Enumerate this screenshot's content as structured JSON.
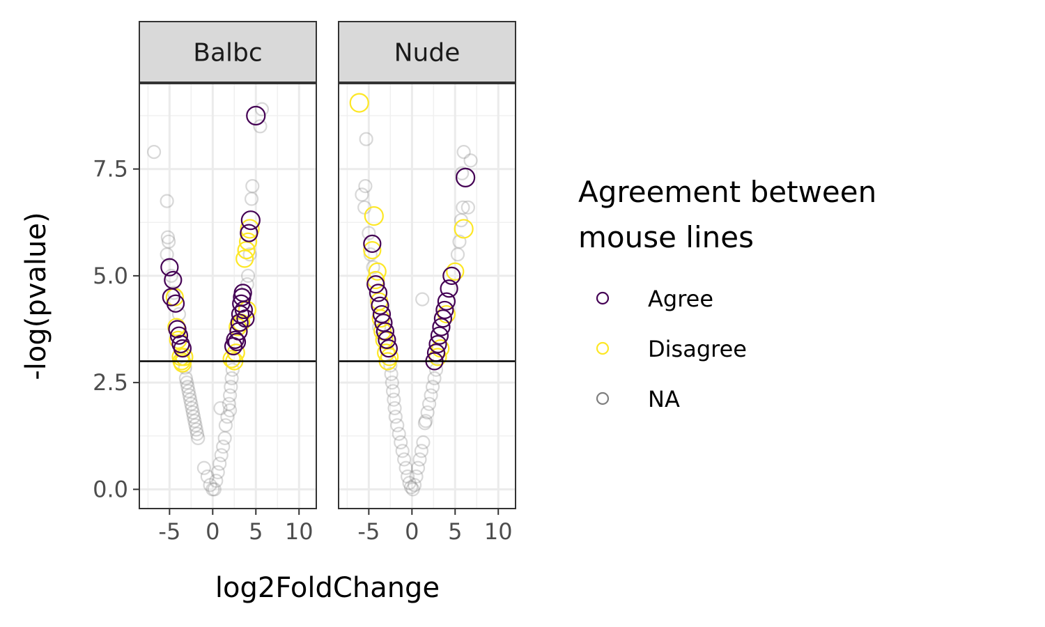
{
  "chart_data": {
    "type": "scatter",
    "xlabel": "log2FoldChange",
    "ylabel": "-log(pvalue)",
    "xlim": [
      -8.5,
      12
    ],
    "ylim": [
      -0.45,
      9.5
    ],
    "x_ticks": [
      -5,
      0,
      5,
      10
    ],
    "x_tick_labels": [
      "-5",
      "0",
      "5",
      "10"
    ],
    "y_ticks": [
      0,
      2.5,
      5,
      7.5
    ],
    "y_tick_labels": [
      "0.0",
      "2.5",
      "5.0",
      "7.5"
    ],
    "threshold_line_y": 3.0,
    "grid": true,
    "legend": {
      "title_lines": [
        "Agreement between",
        "mouse lines"
      ],
      "placement": "right",
      "entries": [
        {
          "label": "Agree",
          "color": "#440154"
        },
        {
          "label": "Disagree",
          "color": "#FDE725"
        },
        {
          "label": "NA",
          "color": "#7f7f7f"
        }
      ]
    },
    "facets": [
      {
        "label": "Balbc",
        "series": [
          {
            "name": "Agree",
            "color": "#440154",
            "points": [
              [
                -5.0,
                5.2
              ],
              [
                -4.6,
                4.9
              ],
              [
                -4.8,
                4.5
              ],
              [
                -4.3,
                4.35
              ],
              [
                -4.1,
                3.75
              ],
              [
                -3.9,
                3.6
              ],
              [
                -3.7,
                3.4
              ],
              [
                -3.5,
                3.3
              ],
              [
                2.4,
                3.35
              ],
              [
                2.6,
                3.5
              ],
              [
                2.8,
                3.45
              ],
              [
                3.0,
                3.7
              ],
              [
                3.1,
                3.9
              ],
              [
                3.2,
                4.1
              ],
              [
                3.3,
                4.35
              ],
              [
                3.4,
                4.5
              ],
              [
                3.5,
                4.6
              ],
              [
                3.6,
                4.2
              ],
              [
                3.8,
                4.0
              ],
              [
                4.2,
                6.0
              ],
              [
                4.4,
                6.3
              ],
              [
                5.0,
                8.75
              ]
            ]
          },
          {
            "name": "Disagree",
            "color": "#FDE725",
            "points": [
              [
                -4.4,
                4.5
              ],
              [
                -4.2,
                3.8
              ],
              [
                -4.0,
                3.5
              ],
              [
                -3.7,
                3.1
              ],
              [
                -3.5,
                2.95
              ],
              [
                -3.3,
                3.1
              ],
              [
                -3.6,
                3.0
              ],
              [
                2.2,
                3.05
              ],
              [
                2.5,
                3.0
              ],
              [
                2.7,
                3.2
              ],
              [
                2.9,
                3.8
              ],
              [
                3.3,
                3.9
              ],
              [
                3.7,
                5.4
              ],
              [
                3.9,
                5.6
              ],
              [
                4.1,
                5.8
              ],
              [
                4.3,
                6.1
              ],
              [
                4.0,
                4.2
              ]
            ]
          },
          {
            "name": "NA",
            "color": "#7f7f7f",
            "points": [
              [
                -6.8,
                7.9
              ],
              [
                -5.3,
                6.75
              ],
              [
                -5.2,
                5.9
              ],
              [
                -5.1,
                5.8
              ],
              [
                -5.3,
                5.5
              ],
              [
                -4.8,
                5.0
              ],
              [
                -4.5,
                4.6
              ],
              [
                -3.9,
                4.1
              ],
              [
                -3.2,
                2.85
              ],
              [
                -3.1,
                2.6
              ],
              [
                -3.0,
                2.5
              ],
              [
                -2.9,
                2.4
              ],
              [
                -2.8,
                2.3
              ],
              [
                -2.7,
                2.2
              ],
              [
                -2.6,
                2.1
              ],
              [
                -2.5,
                2.0
              ],
              [
                -2.4,
                1.9
              ],
              [
                -2.3,
                1.8
              ],
              [
                -2.2,
                1.7
              ],
              [
                -2.1,
                1.6
              ],
              [
                -2.0,
                1.5
              ],
              [
                -1.9,
                1.4
              ],
              [
                -1.8,
                1.3
              ],
              [
                -1.7,
                1.2
              ],
              [
                -1.0,
                0.5
              ],
              [
                -0.6,
                0.3
              ],
              [
                -0.3,
                0.1
              ],
              [
                0.0,
                0.0
              ],
              [
                0.2,
                0.0
              ],
              [
                0.4,
                0.2
              ],
              [
                0.6,
                0.4
              ],
              [
                0.8,
                0.6
              ],
              [
                0.9,
                1.9
              ],
              [
                1.0,
                0.8
              ],
              [
                1.2,
                1.0
              ],
              [
                1.4,
                1.2
              ],
              [
                1.5,
                1.5
              ],
              [
                1.7,
                1.7
              ],
              [
                1.9,
                2.0
              ],
              [
                2.0,
                2.2
              ],
              [
                2.1,
                2.4
              ],
              [
                2.2,
                2.6
              ],
              [
                2.3,
                2.8
              ],
              [
                2.0,
                1.85
              ],
              [
                4.0,
                4.8
              ],
              [
                4.1,
                5.0
              ],
              [
                4.3,
                5.5
              ],
              [
                4.5,
                6.8
              ],
              [
                4.6,
                7.1
              ],
              [
                5.5,
                8.5
              ],
              [
                5.7,
                8.9
              ]
            ]
          }
        ]
      },
      {
        "label": "Nude",
        "series": [
          {
            "name": "Agree",
            "color": "#440154",
            "points": [
              [
                -4.6,
                5.75
              ],
              [
                -4.2,
                4.8
              ],
              [
                -3.9,
                4.6
              ],
              [
                -3.7,
                4.3
              ],
              [
                -3.5,
                4.1
              ],
              [
                -3.3,
                3.9
              ],
              [
                -3.1,
                3.7
              ],
              [
                -2.9,
                3.5
              ],
              [
                -2.7,
                3.3
              ],
              [
                2.6,
                3.0
              ],
              [
                2.8,
                3.2
              ],
              [
                3.0,
                3.4
              ],
              [
                3.2,
                3.6
              ],
              [
                3.4,
                3.8
              ],
              [
                3.6,
                4.0
              ],
              [
                3.8,
                4.2
              ],
              [
                4.0,
                4.4
              ],
              [
                4.3,
                4.7
              ],
              [
                4.6,
                5.0
              ],
              [
                6.2,
                7.3
              ]
            ]
          },
          {
            "name": "Disagree",
            "color": "#FDE725",
            "points": [
              [
                -6.1,
                9.05
              ],
              [
                -4.6,
                5.6
              ],
              [
                -4.4,
                6.4
              ],
              [
                -4.2,
                4.9
              ],
              [
                -4.0,
                5.1
              ],
              [
                -3.8,
                4.4
              ],
              [
                -3.6,
                4.0
              ],
              [
                -3.4,
                3.7
              ],
              [
                -3.2,
                3.5
              ],
              [
                -3.0,
                3.2
              ],
              [
                -2.8,
                3.0
              ],
              [
                -2.6,
                3.1
              ],
              [
                3.0,
                3.1
              ],
              [
                3.3,
                3.3
              ],
              [
                4.0,
                4.1
              ],
              [
                5.0,
                5.1
              ],
              [
                6.0,
                6.1
              ]
            ]
          },
          {
            "name": "NA",
            "color": "#7f7f7f",
            "points": [
              [
                -5.3,
                8.2
              ],
              [
                -5.4,
                7.1
              ],
              [
                -5.8,
                6.9
              ],
              [
                -5.5,
                6.6
              ],
              [
                -5.0,
                6.0
              ],
              [
                -4.8,
                5.5
              ],
              [
                -4.5,
                5.2
              ],
              [
                -3.8,
                3.8
              ],
              [
                -2.5,
                2.9
              ],
              [
                -2.4,
                2.7
              ],
              [
                -2.3,
                2.5
              ],
              [
                -2.2,
                2.3
              ],
              [
                -2.1,
                2.1
              ],
              [
                -2.0,
                1.9
              ],
              [
                -1.9,
                1.7
              ],
              [
                -1.7,
                1.5
              ],
              [
                -1.5,
                1.3
              ],
              [
                -1.3,
                1.1
              ],
              [
                -1.1,
                0.9
              ],
              [
                -0.9,
                0.7
              ],
              [
                -0.7,
                0.5
              ],
              [
                -0.5,
                0.3
              ],
              [
                -0.3,
                0.15
              ],
              [
                -0.1,
                0.05
              ],
              [
                0.1,
                0.0
              ],
              [
                0.3,
                0.1
              ],
              [
                0.5,
                0.3
              ],
              [
                0.7,
                0.5
              ],
              [
                0.9,
                0.7
              ],
              [
                1.1,
                0.9
              ],
              [
                1.3,
                1.1
              ],
              [
                1.5,
                1.55
              ],
              [
                1.6,
                1.6
              ],
              [
                1.8,
                1.8
              ],
              [
                2.0,
                2.0
              ],
              [
                2.2,
                2.2
              ],
              [
                2.4,
                2.4
              ],
              [
                2.6,
                2.6
              ],
              [
                2.8,
                2.8
              ],
              [
                1.2,
                4.45
              ],
              [
                5.3,
                5.5
              ],
              [
                5.5,
                5.8
              ],
              [
                5.7,
                6.3
              ],
              [
                5.9,
                6.6
              ],
              [
                6.5,
                6.6
              ],
              [
                5.8,
                7.4
              ],
              [
                6.0,
                7.9
              ],
              [
                6.8,
                7.7
              ]
            ]
          }
        ]
      }
    ]
  }
}
